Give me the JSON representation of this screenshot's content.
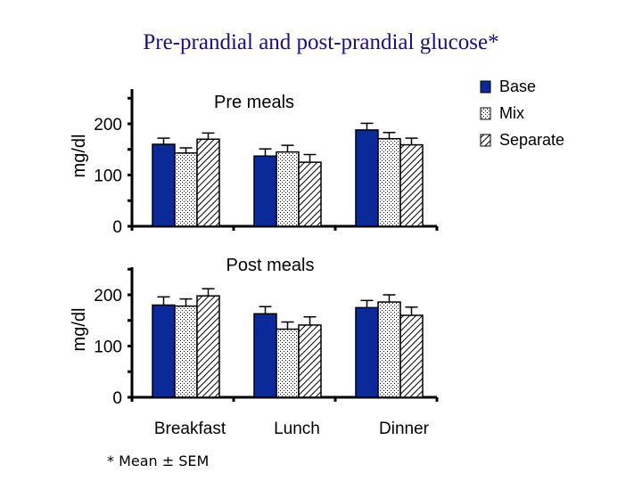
{
  "title": "Pre-prandial and post-prandial glucose*",
  "footnote": "* Mean ± SEM",
  "colors": {
    "title": "#1a0e8c",
    "base": "#0a2a9a",
    "axis": "#000000"
  },
  "chart_data": [
    {
      "type": "bar",
      "title": "Pre meals",
      "ylabel": "mg/dl",
      "ylim": [
        0,
        250
      ],
      "yticks": [
        "0",
        "100",
        "200"
      ],
      "categories": [
        "Breakfast",
        "Lunch",
        "Dinner"
      ],
      "series": [
        {
          "name": "Base",
          "values": [
            160,
            137,
            188
          ],
          "errors": [
            12,
            14,
            13
          ]
        },
        {
          "name": "Mix",
          "values": [
            143,
            145,
            171
          ],
          "errors": [
            10,
            13,
            12
          ]
        },
        {
          "name": "Separate",
          "values": [
            170,
            125,
            159
          ],
          "errors": [
            12,
            15,
            13
          ]
        }
      ]
    },
    {
      "type": "bar",
      "title": "Post meals",
      "ylabel": "mg/dl",
      "ylim": [
        0,
        250
      ],
      "yticks": [
        "0",
        "100",
        "200"
      ],
      "categories": [
        "Breakfast",
        "Lunch",
        "Dinner"
      ],
      "series": [
        {
          "name": "Base",
          "values": [
            180,
            163,
            175
          ],
          "errors": [
            16,
            14,
            14
          ]
        },
        {
          "name": "Mix",
          "values": [
            178,
            133,
            186
          ],
          "errors": [
            14,
            14,
            14
          ]
        },
        {
          "name": "Separate",
          "values": [
            198,
            141,
            160
          ],
          "errors": [
            14,
            16,
            16
          ]
        }
      ]
    }
  ],
  "legend": {
    "position": "top-right",
    "items": [
      "Base",
      "Mix",
      "Separate"
    ]
  }
}
